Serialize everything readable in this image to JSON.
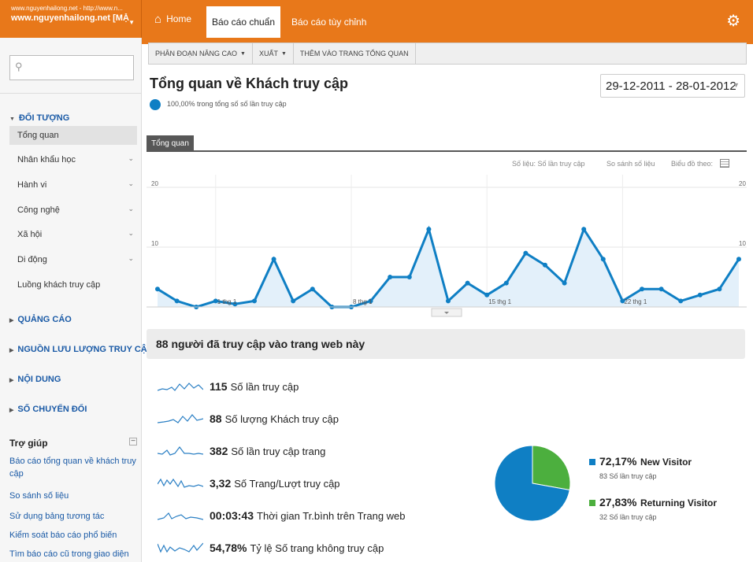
{
  "account": {
    "url": "www.nguyenhailong.net - http://www.n...",
    "name": "www.nguyenhailong.net [MẶ..."
  },
  "topnav": {
    "home": "Home",
    "tab_standard": "Báo cáo chuẩn",
    "tab_custom": "Báo cáo tùy chỉnh"
  },
  "sidebar": {
    "search_placeholder": "",
    "audience_header": "ĐỐI TƯỢNG",
    "audience_items": [
      {
        "label": "Tổng quan"
      },
      {
        "label": "Nhân khẩu học"
      },
      {
        "label": "Hành vi"
      },
      {
        "label": "Công nghệ"
      },
      {
        "label": "Xã hội"
      },
      {
        "label": "Di động"
      },
      {
        "label": "Luồng khách truy cập"
      }
    ],
    "sections": [
      "QUẢNG CÁO",
      "NGUỒN LƯU LƯỢNG TRUY CẬP",
      "NỘI DUNG",
      "SỐ CHUYỂN ĐỔI"
    ],
    "help_header": "Trợ giúp",
    "help_links": [
      "Báo cáo tổng quan về khách truy cập",
      "So sánh số liệu",
      "Sử dụng bảng tương tác",
      "Kiểm soát báo cáo phổ biến",
      "Tìm báo cáo cũ trong giao diện mới"
    ]
  },
  "toolbar": {
    "segments": "PHÂN ĐOẠN NÂNG CAO",
    "export": "XUẤT",
    "add_dashboard": "THÊM VÀO TRANG TỔNG QUAN"
  },
  "report": {
    "title": "Tổng quan về Khách truy cập",
    "segment_text": "100,00% trong tổng số số lần truy cập",
    "date_range": "29-12-2011 - 28-01-2012",
    "tab": "Tổng quan",
    "chart_options": {
      "metric": "Số liệu: Số lần truy cập",
      "compare": "So sánh số liệu",
      "graph_by": "Biểu đồ theo:"
    }
  },
  "chart_data": {
    "type": "area",
    "y_ticks_left": [
      "20",
      "10"
    ],
    "y_ticks_right": [
      "20",
      "10"
    ],
    "ylim": [
      0,
      20
    ],
    "x_labels": [
      "1 thg 1",
      "8 thg 1",
      "15 thg 1",
      "22 thg 1"
    ],
    "x_label_indices": [
      3,
      10,
      17,
      24
    ],
    "series": [
      {
        "values": [
          3,
          1,
          0,
          1,
          0.5,
          1,
          8,
          1,
          3,
          0,
          0,
          1,
          5,
          5,
          13,
          1,
          4,
          2,
          4,
          9,
          7,
          4,
          13,
          8,
          1,
          3,
          3,
          1,
          2,
          3,
          8
        ]
      }
    ],
    "line_color": "#0f7fc4",
    "fill_color": "#e3f0fa"
  },
  "summary": {
    "headline": "88 người đã truy cập vào trang web này",
    "metrics": [
      {
        "value": "115",
        "label": "Số lần truy cập"
      },
      {
        "value": "88",
        "label": "Số lượng Khách truy cập"
      },
      {
        "value": "382",
        "label": "Số lần truy cập trang"
      },
      {
        "value": "3,32",
        "label": "Số Trang/Lượt truy cập"
      },
      {
        "value": "00:03:43",
        "label": "Thời gian Tr.bình trên Trang web"
      },
      {
        "value": "54,78%",
        "label": "Tỷ lệ Số trang không truy cập"
      }
    ]
  },
  "pie": {
    "slices": [
      {
        "name": "New Visitor",
        "pct": "72,17%",
        "value": 72.17,
        "sub": "83 Số lần truy cập",
        "color": "#0f7fc4"
      },
      {
        "name": "Returning Visitor",
        "pct": "27,83%",
        "value": 27.83,
        "sub": "32 Số lần truy cập",
        "color": "#4caf3e"
      }
    ]
  }
}
